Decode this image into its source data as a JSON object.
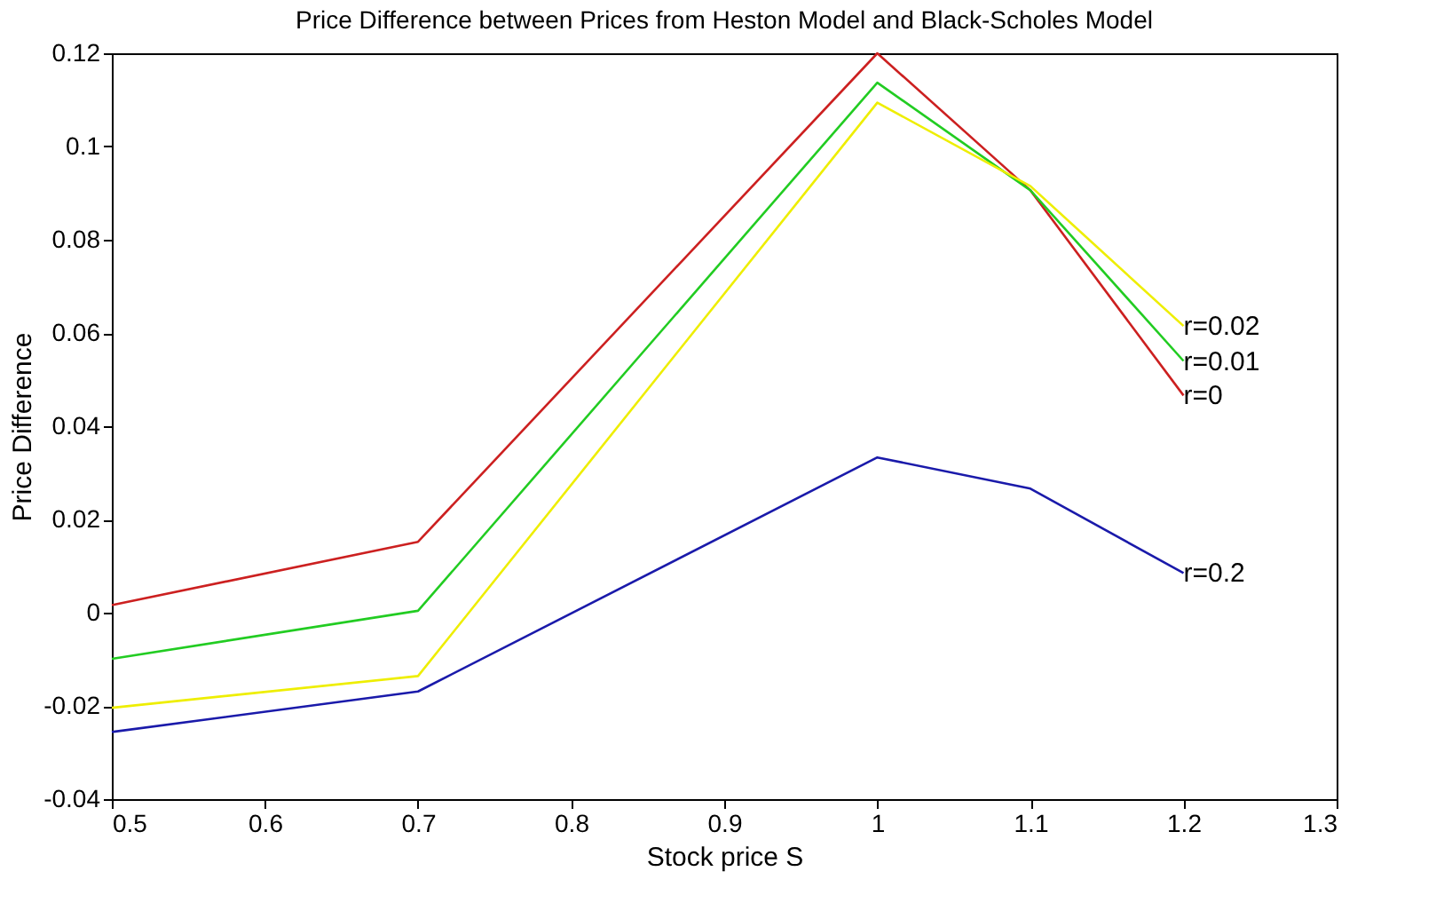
{
  "chart_data": {
    "type": "line",
    "title": "Price Difference between Prices from Heston Model and Black-Scholes Model",
    "xlabel": "Stock price S",
    "ylabel": "Price Difference",
    "x": [
      0.5,
      0.7,
      1.0,
      1.1,
      1.2
    ],
    "series": [
      {
        "name": "r=0",
        "color": "#cc2020",
        "values": [
          0.0016,
          0.0152,
          0.12,
          0.0906,
          0.0466
        ]
      },
      {
        "name": "r=0.01",
        "color": "#22cc22",
        "values": [
          -0.0099,
          0.0004,
          0.1137,
          0.0906,
          0.054
        ]
      },
      {
        "name": "r=0.02",
        "color": "#eeee00",
        "values": [
          -0.0204,
          -0.0136,
          0.1094,
          0.0915,
          0.0615
        ]
      },
      {
        "name": "r=0.2",
        "color": "#1a1aaa",
        "values": [
          -0.0256,
          -0.0169,
          0.0333,
          0.0266,
          0.0085
        ]
      }
    ],
    "xlim": [
      0.5,
      1.3
    ],
    "xticks": [
      0.5,
      0.6,
      0.7,
      0.8,
      0.9,
      1,
      1.1,
      1.2,
      1.3
    ],
    "ylim": [
      -0.04,
      0.12
    ],
    "yticks": [
      -0.04,
      -0.02,
      0,
      0.02,
      0.04,
      0.06,
      0.08,
      0.1,
      0.12
    ],
    "grid": false,
    "legend": false,
    "marker": "none",
    "line_style": "solid"
  }
}
